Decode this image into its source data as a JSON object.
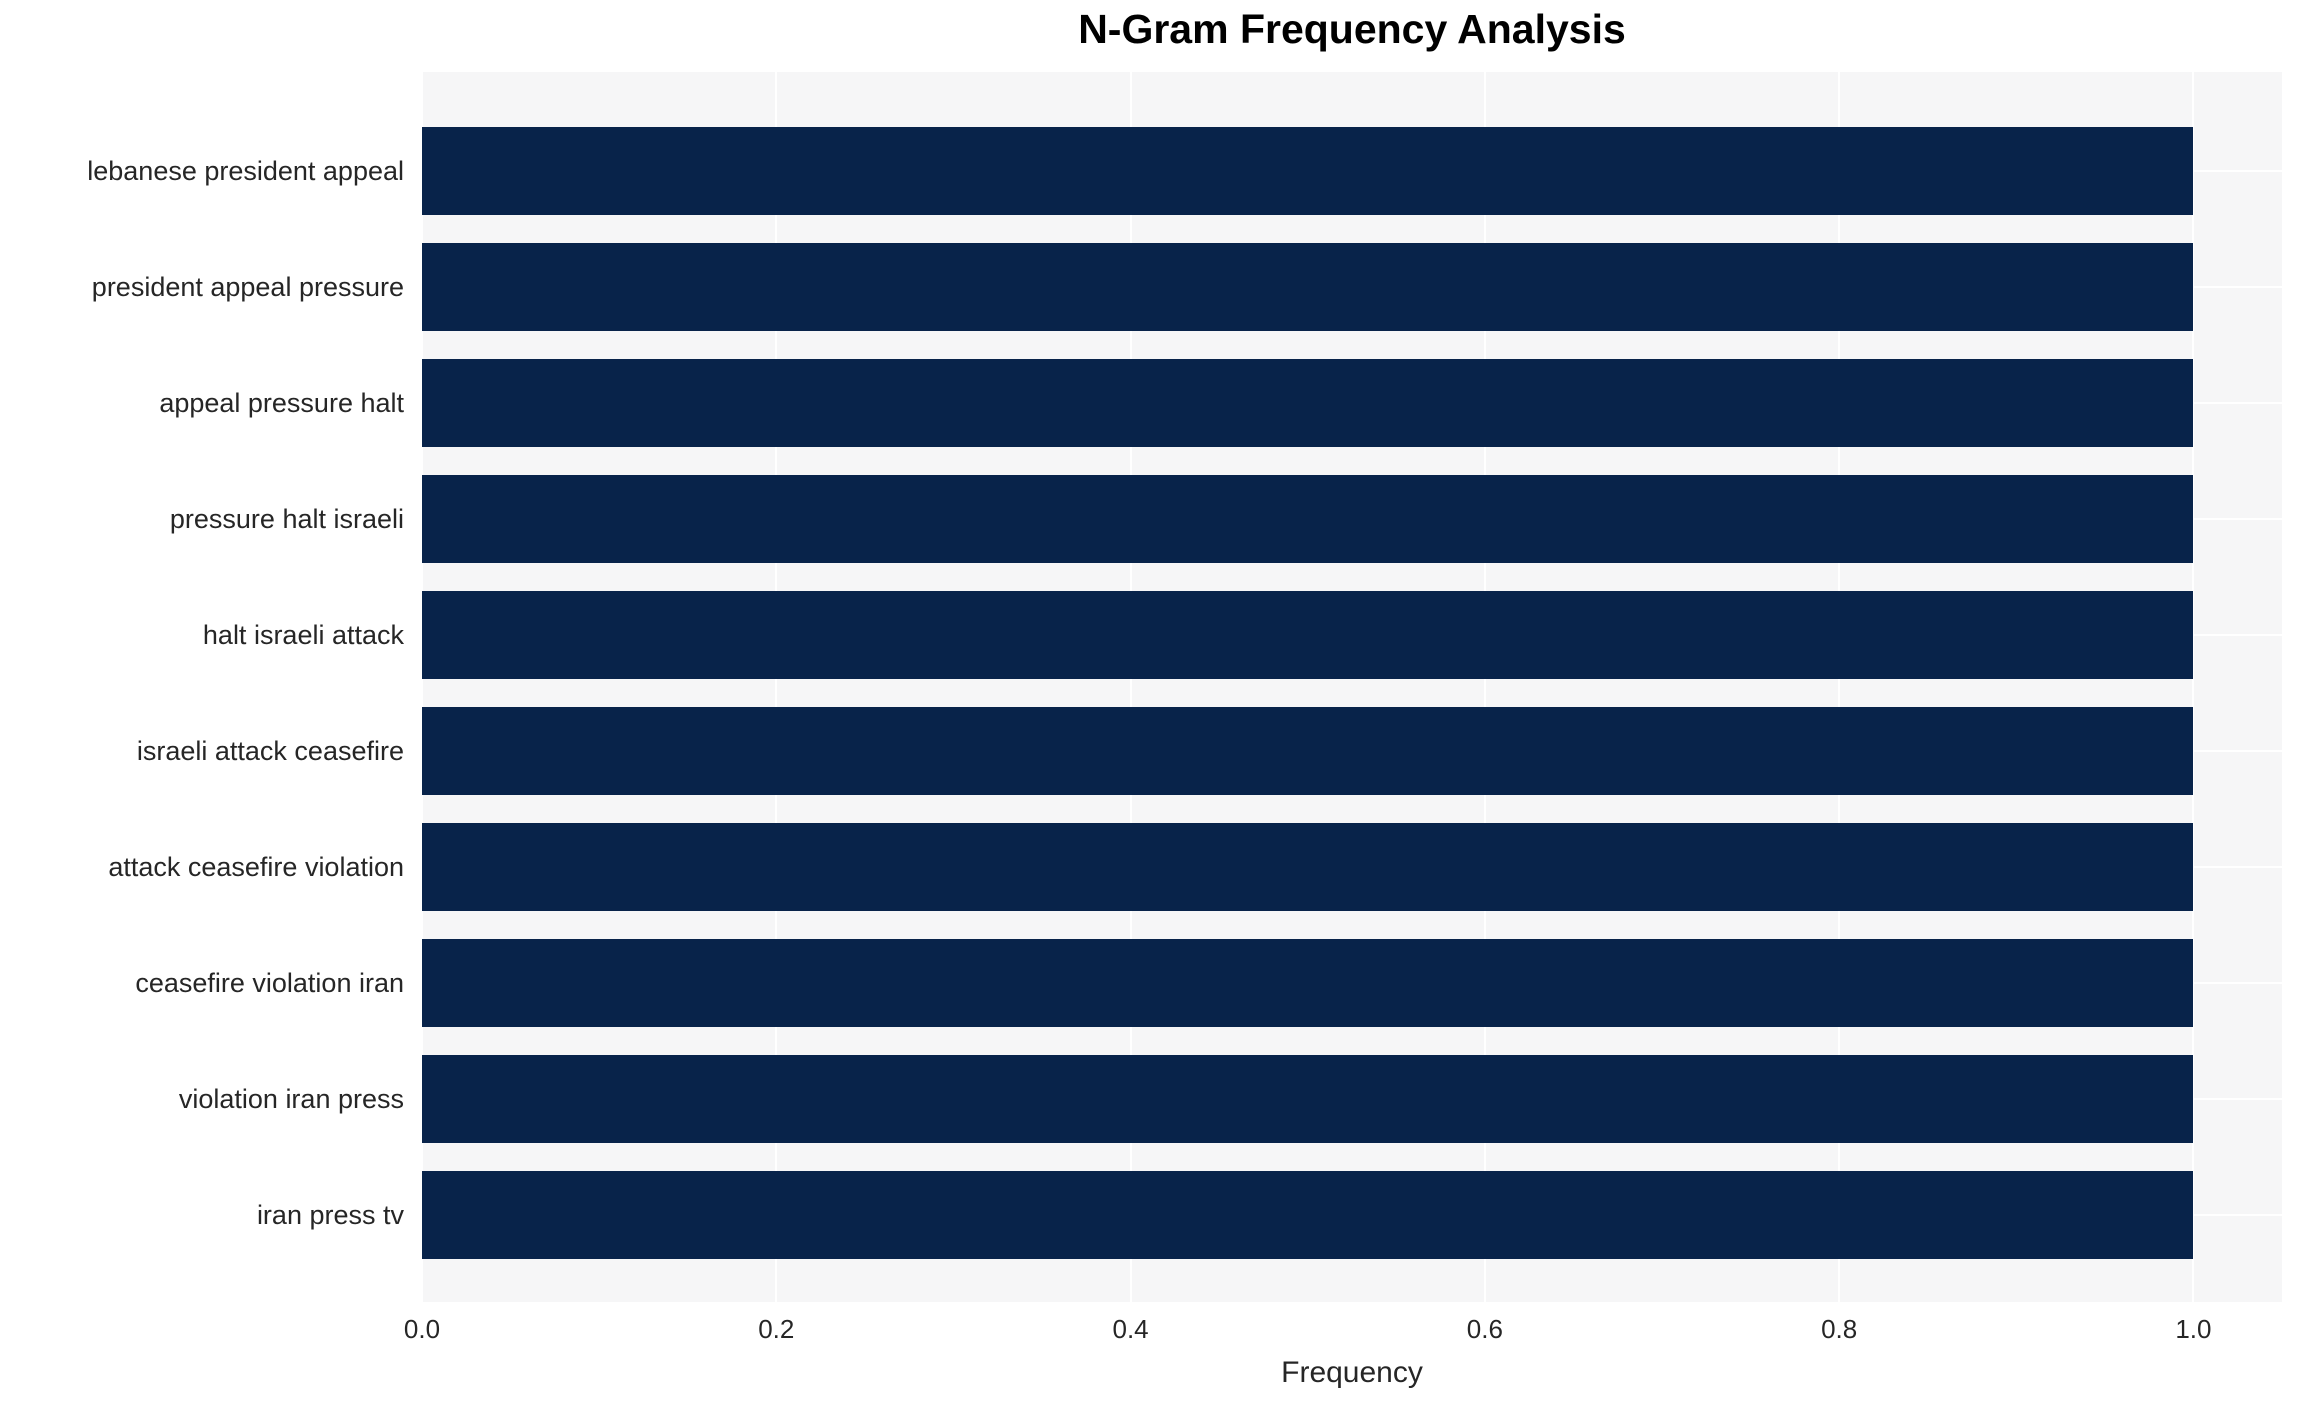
{
  "chart_data": {
    "type": "bar",
    "orientation": "horizontal",
    "title": "N-Gram Frequency Analysis",
    "xlabel": "Frequency",
    "ylabel": "",
    "categories": [
      "lebanese president appeal",
      "president appeal pressure",
      "appeal pressure halt",
      "pressure halt israeli",
      "halt israeli attack",
      "israeli attack ceasefire",
      "attack ceasefire violation",
      "ceasefire violation iran",
      "violation iran press",
      "iran press tv"
    ],
    "values": [
      1.0,
      1.0,
      1.0,
      1.0,
      1.0,
      1.0,
      1.0,
      1.0,
      1.0,
      1.0
    ],
    "xlim": [
      0,
      1.05
    ],
    "xticks": [
      0.0,
      0.2,
      0.4,
      0.6,
      0.8,
      1.0
    ],
    "xtick_labels": [
      "0.0",
      "0.2",
      "0.4",
      "0.6",
      "0.8",
      "1.0"
    ],
    "grid": true,
    "legend_position": "none",
    "colors": {
      "bar": "#08234A",
      "panel_background": "#F6F6F7",
      "gridline": "#FFFFFF",
      "tick_text": "#262626",
      "title_text": "#000000"
    }
  }
}
